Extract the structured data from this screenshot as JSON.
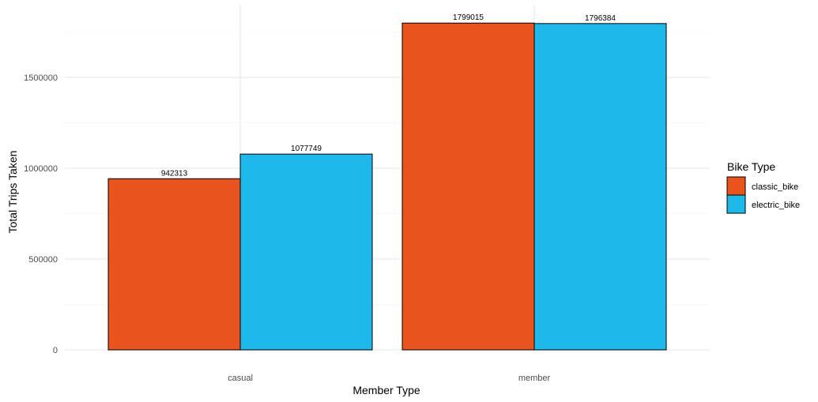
{
  "chart_data": {
    "type": "bar",
    "categories": [
      "casual",
      "member"
    ],
    "series": [
      {
        "name": "classic_bike",
        "color": "#E9531E",
        "values": [
          942313,
          1799015
        ]
      },
      {
        "name": "electric_bike",
        "color": "#1EB8EA",
        "values": [
          1077749,
          1796384
        ]
      }
    ],
    "xlabel": "Member Type",
    "ylabel": "Total Trips Taken",
    "ylim": [
      0,
      1800000
    ],
    "yticks": [
      0,
      500000,
      1000000,
      1500000
    ],
    "ytick_labels": [
      "0",
      "500000",
      "1000000",
      "1500000"
    ],
    "data_labels": [
      [
        "942313",
        "1799015"
      ],
      [
        "1077749",
        "1796384"
      ]
    ],
    "legend": {
      "title": "Bike Type",
      "position": "right"
    },
    "grid": true
  }
}
